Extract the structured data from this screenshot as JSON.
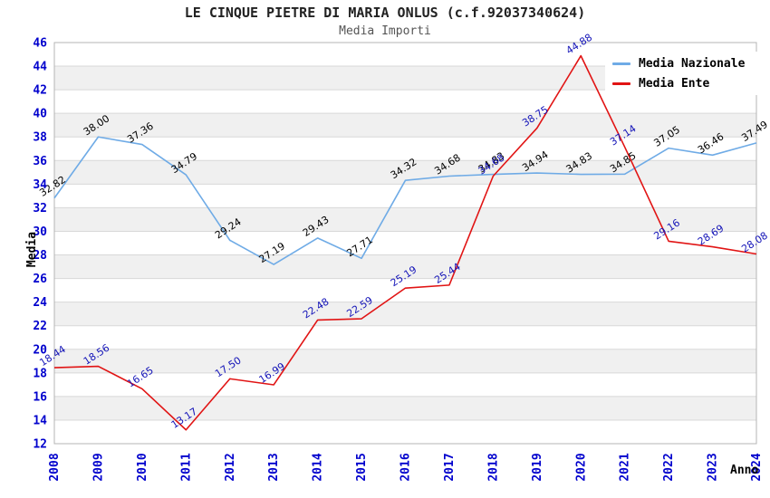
{
  "title": "LE CINQUE PIETRE DI MARIA ONLUS (c.f.92037340624)",
  "subtitle": "Media Importi",
  "axes": {
    "y_label": "Media",
    "x_label": "Anno"
  },
  "legend": [
    {
      "label": "Media Nazionale",
      "color": "#6fabe6"
    },
    {
      "label": "Media Ente",
      "color": "#e11414"
    }
  ],
  "colors": {
    "stripe_gray": "#f0f0f0",
    "stripe_white": "#ffffff",
    "gridline": "#d8d8d8",
    "plot_border": "#b4b4b4",
    "tick_text": "#0000cd",
    "nazionale_line": "#6fabe6",
    "nazionale_label": "#000000",
    "ente_line": "#e11414",
    "ente_label": "#1414b8"
  },
  "chart_data": {
    "type": "line",
    "title": "LE CINQUE PIETRE DI MARIA ONLUS (c.f.92037340624)",
    "subtitle": "Media Importi",
    "xlabel": "Anno",
    "ylabel": "Media",
    "x": [
      "2008",
      "2009",
      "2010",
      "2011",
      "2012",
      "2013",
      "2014",
      "2015",
      "2016",
      "2017",
      "2018",
      "2019",
      "2020",
      "2021",
      "2022",
      "2023",
      "2024"
    ],
    "ylim": [
      12,
      46
    ],
    "ytick_step": 2,
    "grid": true,
    "legend_position": "top-right",
    "series": [
      {
        "name": "Media Nazionale",
        "color": "#6fabe6",
        "label_color": "#000000",
        "values": [
          32.82,
          38.0,
          37.36,
          34.79,
          29.24,
          27.19,
          29.43,
          27.71,
          34.32,
          34.68,
          34.83,
          34.94,
          34.83,
          34.85,
          37.05,
          36.46,
          37.49
        ],
        "labels": [
          "32.82",
          "38.00",
          "37.36",
          "34.79",
          "29.24",
          "27.19",
          "29.43",
          "27.71",
          "34.32",
          "34.68",
          "34.83",
          "34.94",
          "34.83",
          "34.85",
          "37.05",
          "36.46",
          "37.49"
        ]
      },
      {
        "name": "Media Ente",
        "color": "#e11414",
        "label_color": "#1414b8",
        "values": [
          18.44,
          18.56,
          16.65,
          13.17,
          17.5,
          16.99,
          22.48,
          22.59,
          25.19,
          25.44,
          34.68,
          38.75,
          44.88,
          37.14,
          29.16,
          28.69,
          28.08
        ],
        "labels": [
          "18.44",
          "18.56",
          "16.65",
          "13.17",
          "17.50",
          "16.99",
          "22.48",
          "22.59",
          "25.19",
          "25.44",
          "34.68",
          "38.75",
          "44.88",
          "37.14",
          "29.16",
          "28.69",
          "28.08"
        ]
      }
    ]
  }
}
